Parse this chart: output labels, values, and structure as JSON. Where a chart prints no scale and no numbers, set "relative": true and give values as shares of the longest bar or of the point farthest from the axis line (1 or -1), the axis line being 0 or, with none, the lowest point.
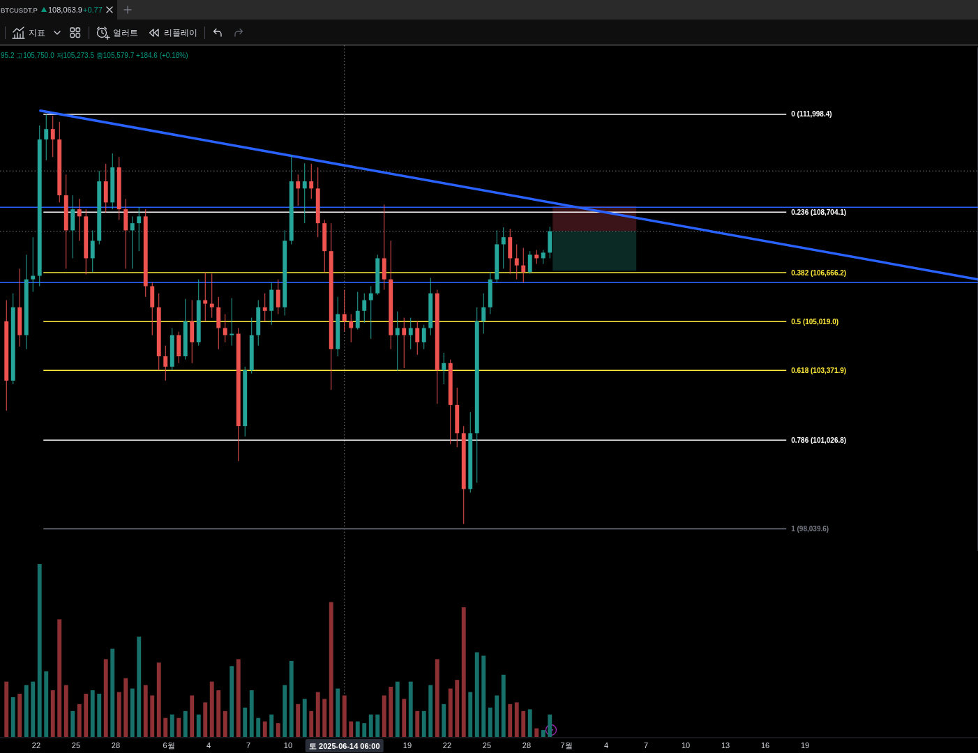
{
  "chart_data": [
    {
      "type": "candlestick",
      "title": "BTCUSDT.P",
      "annotations": [
        "108,063.9",
        "+0.77",
        "지표",
        "얼러트",
        "리플레이",
        "95.2 고105,750.0 저105,273.5 종105,579.7 +184.6 (+0.18%)"
      ],
      "x": [
        "2025-05-19T18:00",
        "2025-05-20T06:00",
        "2025-05-20T18:00",
        "2025-05-21T06:00",
        "2025-05-21T18:00",
        "2025-05-22T06:00",
        "2025-05-22T18:00",
        "2025-05-23T06:00",
        "2025-05-23T18:00",
        "2025-05-24T06:00",
        "2025-05-24T18:00",
        "2025-05-25T06:00",
        "2025-05-25T18:00",
        "2025-05-26T06:00",
        "2025-05-26T18:00",
        "2025-05-27T06:00",
        "2025-05-27T18:00",
        "2025-05-28T06:00",
        "2025-05-28T18:00",
        "2025-05-29T06:00",
        "2025-05-29T18:00",
        "2025-05-30T06:00",
        "2025-05-30T18:00",
        "2025-05-31T06:00",
        "2025-05-31T18:00",
        "2025-06-01T06:00",
        "2025-06-01T18:00",
        "2025-06-02T06:00",
        "2025-06-02T18:00",
        "2025-06-03T06:00",
        "2025-06-03T18:00",
        "2025-06-04T06:00",
        "2025-06-04T18:00",
        "2025-06-05T06:00",
        "2025-06-05T18:00",
        "2025-06-06T06:00",
        "2025-06-06T18:00",
        "2025-06-07T06:00",
        "2025-06-07T18:00",
        "2025-06-08T06:00",
        "2025-06-08T18:00",
        "2025-06-09T06:00",
        "2025-06-09T18:00",
        "2025-06-10T06:00",
        "2025-06-10T18:00",
        "2025-06-11T06:00",
        "2025-06-11T18:00",
        "2025-06-12T06:00",
        "2025-06-12T18:00",
        "2025-06-13T06:00",
        "2025-06-13T18:00",
        "2025-06-14T06:00",
        "2025-06-14T18:00",
        "2025-06-15T06:00",
        "2025-06-15T18:00",
        "2025-06-16T06:00",
        "2025-06-16T18:00",
        "2025-06-17T06:00",
        "2025-06-17T18:00",
        "2025-06-18T06:00",
        "2025-06-18T18:00",
        "2025-06-19T06:00",
        "2025-06-19T18:00",
        "2025-06-20T06:00",
        "2025-06-20T18:00",
        "2025-06-21T06:00",
        "2025-06-21T18:00",
        "2025-06-22T06:00",
        "2025-06-22T18:00",
        "2025-06-23T06:00",
        "2025-06-23T18:00",
        "2025-06-24T06:00",
        "2025-06-24T18:00",
        "2025-06-25T06:00",
        "2025-06-25T18:00",
        "2025-06-26T06:00",
        "2025-06-26T18:00",
        "2025-06-27T06:00",
        "2025-06-27T18:00",
        "2025-06-28T06:00",
        "2025-06-28T18:00",
        "2025-06-29T06:00",
        "2025-06-29T18:00"
      ],
      "ohlc": [
        [
          105030,
          105740,
          102020,
          103030
        ],
        [
          103030,
          105970,
          102910,
          105500
        ],
        [
          105500,
          106800,
          104180,
          104560
        ],
        [
          104560,
          107270,
          104090,
          106440
        ],
        [
          106440,
          107860,
          106020,
          106560
        ],
        [
          106560,
          111620,
          106210,
          111150
        ],
        [
          111150,
          111990,
          110450,
          111500
        ],
        [
          111500,
          111950,
          110560,
          111150
        ],
        [
          111150,
          111740,
          109030,
          109270
        ],
        [
          109270,
          109970,
          106800,
          108090
        ],
        [
          108090,
          109270,
          107150,
          108800
        ],
        [
          108800,
          109150,
          107740,
          108560
        ],
        [
          108560,
          108800,
          106610,
          107150
        ],
        [
          107150,
          108090,
          106680,
          107740
        ],
        [
          107740,
          110090,
          107620,
          109740
        ],
        [
          109740,
          110330,
          108680,
          109030
        ],
        [
          109030,
          110680,
          108800,
          110210
        ],
        [
          110210,
          110560,
          108440,
          108800
        ],
        [
          108800,
          109150,
          106800,
          108090
        ],
        [
          108090,
          108560,
          106800,
          108330
        ],
        [
          108330,
          108870,
          107390,
          108560
        ],
        [
          108560,
          108800,
          105850,
          106210
        ],
        [
          106210,
          106330,
          104560,
          105500
        ],
        [
          105500,
          105970,
          103380,
          103850
        ],
        [
          103850,
          104210,
          103030,
          103500
        ],
        [
          103500,
          104800,
          103380,
          104560
        ],
        [
          104560,
          104680,
          103620,
          103850
        ],
        [
          103850,
          105780,
          103740,
          105030
        ],
        [
          105030,
          105740,
          103620,
          104320
        ],
        [
          104320,
          106440,
          104210,
          105740
        ],
        [
          105740,
          106680,
          105030,
          105620
        ],
        [
          105620,
          106630,
          105150,
          105500
        ],
        [
          105500,
          105850,
          104090,
          104800
        ],
        [
          104800,
          105270,
          104320,
          104560
        ],
        [
          104560,
          105810,
          104210,
          104610
        ],
        [
          104610,
          104800,
          100320,
          101500
        ],
        [
          101500,
          103500,
          101150,
          103380
        ],
        [
          103380,
          105150,
          103270,
          104560
        ],
        [
          104560,
          105740,
          104210,
          105500
        ],
        [
          105500,
          105970,
          105030,
          105380
        ],
        [
          105380,
          106330,
          104910,
          106090
        ],
        [
          106090,
          106440,
          105270,
          105500
        ],
        [
          105500,
          108090,
          105220,
          107740
        ],
        [
          107740,
          110630,
          107620,
          109740
        ],
        [
          109740,
          109970,
          108920,
          109500
        ],
        [
          109500,
          110350,
          108330,
          109740
        ],
        [
          109740,
          110330,
          109150,
          109500
        ],
        [
          109500,
          110210,
          107860,
          108330
        ],
        [
          108330,
          108440,
          106680,
          107390
        ],
        [
          107390,
          108330,
          102720,
          104090
        ],
        [
          104090,
          105850,
          103850,
          105270
        ],
        [
          105270,
          106090,
          104680,
          105030
        ],
        [
          105030,
          105270,
          104320,
          104800
        ],
        [
          104800,
          106020,
          104750,
          105380
        ],
        [
          105380,
          105970,
          104980,
          105740
        ],
        [
          105740,
          106210,
          104440,
          105970
        ],
        [
          105970,
          107270,
          105920,
          107150
        ],
        [
          107150,
          108960,
          106090,
          106440
        ],
        [
          106440,
          107740,
          104090,
          104560
        ],
        [
          104560,
          105360,
          103360,
          104800
        ],
        [
          104800,
          105150,
          103450,
          104560
        ],
        [
          104560,
          105150,
          104090,
          104800
        ],
        [
          104800,
          105030,
          103900,
          104320
        ],
        [
          104320,
          104910,
          104090,
          104800
        ],
        [
          104800,
          106490,
          104560,
          105970
        ],
        [
          105970,
          106090,
          102250,
          103380
        ],
        [
          103380,
          103970,
          102910,
          103620
        ],
        [
          103620,
          103740,
          100890,
          102210
        ],
        [
          102210,
          102790,
          100790,
          101260
        ],
        [
          101260,
          101500,
          98200,
          99380
        ],
        [
          99380,
          101970,
          99260,
          101260
        ],
        [
          101260,
          105500,
          99590,
          105030
        ],
        [
          105030,
          105970,
          104610,
          105500
        ],
        [
          105500,
          106680,
          105270,
          106440
        ],
        [
          106440,
          108090,
          106330,
          107620
        ],
        [
          107620,
          108190,
          106800,
          107860
        ],
        [
          107860,
          108140,
          106630,
          107150
        ],
        [
          107150,
          107620,
          106440,
          106910
        ],
        [
          106910,
          107500,
          106330,
          106680
        ],
        [
          106680,
          107390,
          106630,
          107270
        ],
        [
          107270,
          107430,
          106960,
          107150
        ],
        [
          107150,
          107430,
          106960,
          107340
        ],
        [
          107340,
          108210,
          107150,
          108060
        ]
      ],
      "colors": [
        "#ef5350",
        "#26a69a",
        "#ef5350",
        "#26a69a",
        "#26a69a",
        "#26a69a",
        "#26a69a",
        "#ef5350",
        "#ef5350",
        "#ef5350",
        "#26a69a",
        "#ef5350",
        "#ef5350",
        "#26a69a",
        "#26a69a",
        "#ef5350",
        "#26a69a",
        "#ef5350",
        "#ef5350",
        "#26a69a",
        "#26a69a",
        "#ef5350",
        "#ef5350",
        "#ef5350",
        "#ef5350",
        "#26a69a",
        "#ef5350",
        "#26a69a",
        "#ef5350",
        "#26a69a",
        "#ef5350",
        "#ef5350",
        "#ef5350",
        "#ef5350",
        "#26a69a",
        "#ef5350",
        "#26a69a",
        "#26a69a",
        "#26a69a",
        "#ef5350",
        "#26a69a",
        "#ef5350",
        "#26a69a",
        "#26a69a",
        "#ef5350",
        "#26a69a",
        "#ef5350",
        "#ef5350",
        "#ef5350",
        "#ef5350",
        "#26a69a",
        "#ef5350",
        "#ef5350",
        "#26a69a",
        "#26a69a",
        "#26a69a",
        "#26a69a",
        "#ef5350",
        "#ef5350",
        "#26a69a",
        "#ef5350",
        "#26a69a",
        "#ef5350",
        "#26a69a",
        "#26a69a",
        "#ef5350",
        "#26a69a",
        "#ef5350",
        "#ef5350",
        "#ef5350",
        "#26a69a",
        "#26a69a",
        "#26a69a",
        "#26a69a",
        "#26a69a",
        "#26a69a",
        "#ef5350",
        "#ef5350",
        "#ef5350",
        "#26a69a",
        "#ef5350",
        "#26a69a",
        "#26a69a"
      ],
      "series": [
        {
          "type": "line",
          "color": "#2962ff",
          "x": [
            "2025-05-22T07:30",
            "2025-08-01T01:15"
          ],
          "values": [
            112120,
            106440
          ]
        }
      ],
      "xlim": [
        "2025-05-19T06:20",
        "2025-08-01T01:15"
      ],
      "ylim": [
        97300,
        114250
      ],
      "tick_labels": false,
      "ref_lines": [
        {
          "axis": "y",
          "value": 111998.4,
          "label": "0 (111,998.4)",
          "color": "#ffffff"
        },
        {
          "axis": "y",
          "value": 108704.1,
          "label": "0.236 (108,704.1)",
          "color": "#ffffff"
        },
        {
          "axis": "y",
          "value": 106666.2,
          "label": "0.382 (106,666.2)",
          "color": "#ffeb3b"
        },
        {
          "axis": "y",
          "value": 105019.0,
          "label": "0.5 (105,019.0)",
          "color": "#ffeb3b"
        },
        {
          "axis": "y",
          "value": 103371.9,
          "label": "0.618 (103,371.9)",
          "color": "#ffeb3b"
        },
        {
          "axis": "y",
          "value": 101026.8,
          "label": "0.786 (101,026.8)",
          "color": "#ffffff"
        },
        {
          "axis": "y",
          "value": 98039.6,
          "label": "1 (98,039.6)",
          "color": "#787b86"
        },
        {
          "axis": "y",
          "value": 108870,
          "color": "#2962ff"
        },
        {
          "axis": "y",
          "value": 106330,
          "color": "#2962ff"
        },
        {
          "axis": "y",
          "value": 110090,
          "color": "#787b86",
          "line_style": "dotted"
        },
        {
          "axis": "y",
          "value": 108060,
          "color": "#787b86",
          "line_style": "dotted"
        },
        {
          "axis": "x",
          "value": "2025-06-14T06:00",
          "color": "#787b86",
          "line_style": "dotted"
        }
      ],
      "bands": [
        {
          "axis": "y",
          "from": 108060,
          "to": 108910,
          "color": "#3b1419"
        },
        {
          "axis": "y",
          "from": 106730,
          "to": 108060,
          "color": "#0b2925"
        }
      ]
    },
    {
      "type": "bar",
      "relative": true,
      "x": [
        "2025-05-19T18:00",
        "2025-05-20T06:00",
        "2025-05-20T18:00",
        "2025-05-21T06:00",
        "2025-05-21T18:00",
        "2025-05-22T06:00",
        "2025-05-22T18:00",
        "2025-05-23T06:00",
        "2025-05-23T18:00",
        "2025-05-24T06:00",
        "2025-05-24T18:00",
        "2025-05-25T06:00",
        "2025-05-25T18:00",
        "2025-05-26T06:00",
        "2025-05-26T18:00",
        "2025-05-27T06:00",
        "2025-05-27T18:00",
        "2025-05-28T06:00",
        "2025-05-28T18:00",
        "2025-05-29T06:00",
        "2025-05-29T18:00",
        "2025-05-30T06:00",
        "2025-05-30T18:00",
        "2025-05-31T06:00",
        "2025-05-31T18:00",
        "2025-06-01T06:00",
        "2025-06-01T18:00",
        "2025-06-02T06:00",
        "2025-06-02T18:00",
        "2025-06-03T06:00",
        "2025-06-03T18:00",
        "2025-06-04T06:00",
        "2025-06-04T18:00",
        "2025-06-05T06:00",
        "2025-06-05T18:00",
        "2025-06-06T06:00",
        "2025-06-06T18:00",
        "2025-06-07T06:00",
        "2025-06-07T18:00",
        "2025-06-08T06:00",
        "2025-06-08T18:00",
        "2025-06-09T06:00",
        "2025-06-09T18:00",
        "2025-06-10T06:00",
        "2025-06-10T18:00",
        "2025-06-11T06:00",
        "2025-06-11T18:00",
        "2025-06-12T06:00",
        "2025-06-12T18:00",
        "2025-06-13T06:00",
        "2025-06-13T18:00",
        "2025-06-14T06:00",
        "2025-06-14T18:00",
        "2025-06-15T06:00",
        "2025-06-15T18:00",
        "2025-06-16T06:00",
        "2025-06-16T18:00",
        "2025-06-17T06:00",
        "2025-06-17T18:00",
        "2025-06-18T06:00",
        "2025-06-18T18:00",
        "2025-06-19T06:00",
        "2025-06-19T18:00",
        "2025-06-20T06:00",
        "2025-06-20T18:00",
        "2025-06-21T06:00",
        "2025-06-21T18:00",
        "2025-06-22T06:00",
        "2025-06-22T18:00",
        "2025-06-23T06:00",
        "2025-06-23T18:00",
        "2025-06-24T06:00",
        "2025-06-24T18:00",
        "2025-06-25T06:00",
        "2025-06-25T18:00",
        "2025-06-26T06:00",
        "2025-06-26T18:00",
        "2025-06-27T06:00",
        "2025-06-27T18:00",
        "2025-06-28T06:00",
        "2025-06-28T18:00",
        "2025-06-29T06:00",
        "2025-06-29T18:00"
      ],
      "values": [
        0.32,
        0.23,
        0.25,
        0.3,
        0.32,
        1,
        0.38,
        0.27,
        0.68,
        0.3,
        0.15,
        0.19,
        0.25,
        0.27,
        0.25,
        0.45,
        0.51,
        0.26,
        0.34,
        0.28,
        0.58,
        0.3,
        0.24,
        0.43,
        0.11,
        0.13,
        0.11,
        0.15,
        0.24,
        0.13,
        0.2,
        0.32,
        0.27,
        0.15,
        0.41,
        0.45,
        0.17,
        0.27,
        0.11,
        0.09,
        0.13,
        0.08,
        0.3,
        0.44,
        0.19,
        0.22,
        0.15,
        0.26,
        0.22,
        0.78,
        0.28,
        0.24,
        0.09,
        0.09,
        0.08,
        0.13,
        0.13,
        0.24,
        0.29,
        0.32,
        0.22,
        0.32,
        0.15,
        0.15,
        0.3,
        0.45,
        0.19,
        0.28,
        0.33,
        0.75,
        0.26,
        0.49,
        0.47,
        0.17,
        0.24,
        0.36,
        0.19,
        0.2,
        0.15,
        0.16,
        0.05,
        0.04,
        0.13
      ],
      "colors": [
        "#8c3034",
        "#17706a",
        "#8c3034",
        "#17706a",
        "#17706a",
        "#17706a",
        "#17706a",
        "#8c3034",
        "#8c3034",
        "#8c3034",
        "#17706a",
        "#8c3034",
        "#8c3034",
        "#17706a",
        "#17706a",
        "#8c3034",
        "#17706a",
        "#8c3034",
        "#8c3034",
        "#17706a",
        "#17706a",
        "#8c3034",
        "#8c3034",
        "#8c3034",
        "#8c3034",
        "#17706a",
        "#8c3034",
        "#17706a",
        "#8c3034",
        "#17706a",
        "#8c3034",
        "#8c3034",
        "#8c3034",
        "#8c3034",
        "#17706a",
        "#8c3034",
        "#17706a",
        "#17706a",
        "#17706a",
        "#8c3034",
        "#17706a",
        "#8c3034",
        "#17706a",
        "#17706a",
        "#8c3034",
        "#17706a",
        "#8c3034",
        "#8c3034",
        "#8c3034",
        "#8c3034",
        "#17706a",
        "#8c3034",
        "#8c3034",
        "#17706a",
        "#17706a",
        "#17706a",
        "#17706a",
        "#8c3034",
        "#8c3034",
        "#17706a",
        "#8c3034",
        "#17706a",
        "#8c3034",
        "#17706a",
        "#17706a",
        "#8c3034",
        "#17706a",
        "#8c3034",
        "#8c3034",
        "#8c3034",
        "#17706a",
        "#17706a",
        "#17706a",
        "#17706a",
        "#17706a",
        "#17706a",
        "#8c3034",
        "#8c3034",
        "#8c3034",
        "#17706a",
        "#8c3034",
        "#17706a",
        "#17706a"
      ],
      "xlim": [
        "2025-05-19T06:20",
        "2025-08-01T01:15"
      ],
      "xticks": [
        {
          "value": "2025-05-22",
          "label": "22"
        },
        {
          "value": "2025-05-25",
          "label": "25"
        },
        {
          "value": "2025-05-28",
          "label": "28"
        },
        {
          "value": "2025-06-01",
          "label": "6월"
        },
        {
          "value": "2025-06-04",
          "label": "4"
        },
        {
          "value": "2025-06-07",
          "label": "7"
        },
        {
          "value": "2025-06-10",
          "label": "10"
        },
        {
          "value": "2025-06-19",
          "label": "19"
        },
        {
          "value": "2025-06-22",
          "label": "22"
        },
        {
          "value": "2025-06-25",
          "label": "25"
        },
        {
          "value": "2025-06-28",
          "label": "28"
        },
        {
          "value": "2025-07-01",
          "label": "7월"
        },
        {
          "value": "2025-07-04",
          "label": "4"
        },
        {
          "value": "2025-07-07",
          "label": "7"
        },
        {
          "value": "2025-07-10",
          "label": "10"
        },
        {
          "value": "2025-07-13",
          "label": "13"
        },
        {
          "value": "2025-07-16",
          "label": "16"
        },
        {
          "value": "2025-07-19",
          "label": "19"
        }
      ],
      "tick_labels": "x",
      "ref_lines": [
        {
          "axis": "x",
          "value": "2025-06-14T06:00",
          "label": "토 2025-06-14 06:00",
          "color": "#787b86",
          "line_style": "dotted"
        }
      ]
    }
  ]
}
